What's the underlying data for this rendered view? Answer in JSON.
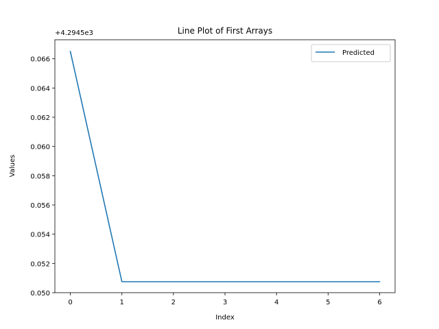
{
  "chart_data": {
    "type": "line",
    "title": "Line Plot of First Arrays",
    "xlabel": "Index",
    "ylabel": "Values",
    "y_offset_label": "+4.2945e3",
    "x": [
      0,
      1,
      2,
      3,
      4,
      5,
      6
    ],
    "series": [
      {
        "name": "Predicted",
        "color": "#1f77b4",
        "values": [
          0.0665,
          0.05075,
          0.05075,
          0.05075,
          0.05075,
          0.05075,
          0.05075
        ]
      }
    ],
    "xticks": [
      0,
      1,
      2,
      3,
      4,
      5,
      6
    ],
    "xtick_labels": [
      "0",
      "1",
      "2",
      "3",
      "4",
      "5",
      "6"
    ],
    "yticks": [
      0.05,
      0.052,
      0.054,
      0.056,
      0.058,
      0.06,
      0.062,
      0.064,
      0.066
    ],
    "ytick_labels": [
      "0.050",
      "0.052",
      "0.054",
      "0.056",
      "0.058",
      "0.060",
      "0.062",
      "0.064",
      "0.066"
    ],
    "xlim": [
      -0.3,
      6.3
    ],
    "ylim": [
      0.05,
      0.0673
    ],
    "legend_position": "upper right",
    "grid": false
  }
}
